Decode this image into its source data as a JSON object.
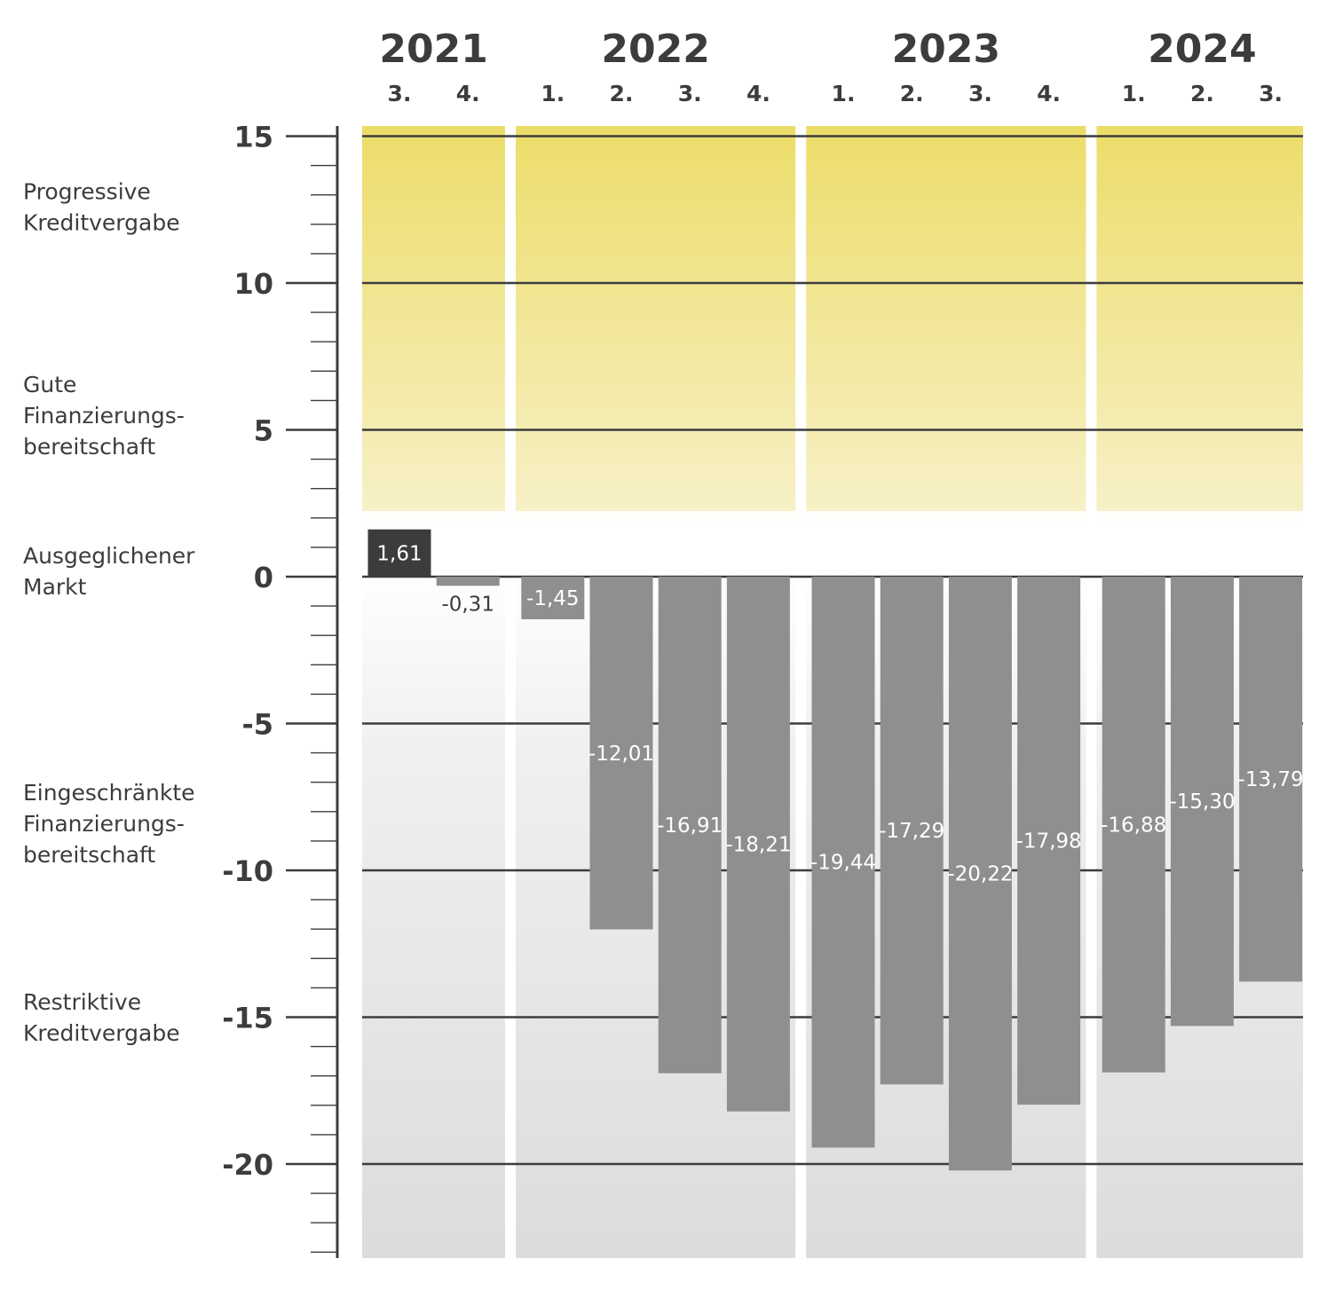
{
  "chart_data": {
    "type": "bar",
    "title": "",
    "xlabel": "",
    "ylabel": "",
    "ylim": [
      -23,
      15
    ],
    "yticks": [
      15,
      10,
      5,
      0,
      -5,
      -10,
      -15,
      -20
    ],
    "grid": true,
    "years": [
      {
        "label": "2021",
        "quarters": [
          "3.",
          "4."
        ]
      },
      {
        "label": "2022",
        "quarters": [
          "1.",
          "2.",
          "3.",
          "4."
        ]
      },
      {
        "label": "2023",
        "quarters": [
          "1.",
          "2.",
          "3.",
          "4."
        ]
      },
      {
        "label": "2024",
        "quarters": [
          "1.",
          "2.",
          "3."
        ]
      }
    ],
    "values": [
      1.61,
      -0.31,
      -1.45,
      -12.01,
      -16.91,
      -18.21,
      -19.44,
      -17.29,
      -20.22,
      -17.98,
      -16.88,
      -15.3,
      -13.79
    ],
    "value_labels": [
      "1,61",
      "-0,31",
      "-1,45",
      "-12,01",
      "-16,91",
      "-18,21",
      "-19,44",
      "-17,29",
      "-20,22",
      "-17,98",
      "-16,88",
      "-15,30",
      "-13,79"
    ],
    "zones": [
      {
        "lines": [
          "Progressive",
          "Kreditvergabe"
        ],
        "value": 12.6
      },
      {
        "lines": [
          "Gute",
          "Finanzierungs-",
          "bereitschaft"
        ],
        "value": 5.5
      },
      {
        "lines": [
          "Ausgeglichener",
          "Markt"
        ],
        "value": 0.2
      },
      {
        "lines": [
          "Eingeschränkte",
          "Finanzierungs-",
          "bereitschaft"
        ],
        "value": -8.4
      },
      {
        "lines": [
          "Restriktive",
          "Kreditvergabe"
        ],
        "value": -15.0
      }
    ],
    "colors": {
      "bar_negative": "#8e8f91",
      "bar_positive": "#3c3c3e",
      "band_top": "#ecdd69",
      "band_bottom": "#dcdcdd",
      "grid": "#3c3c3e"
    }
  }
}
